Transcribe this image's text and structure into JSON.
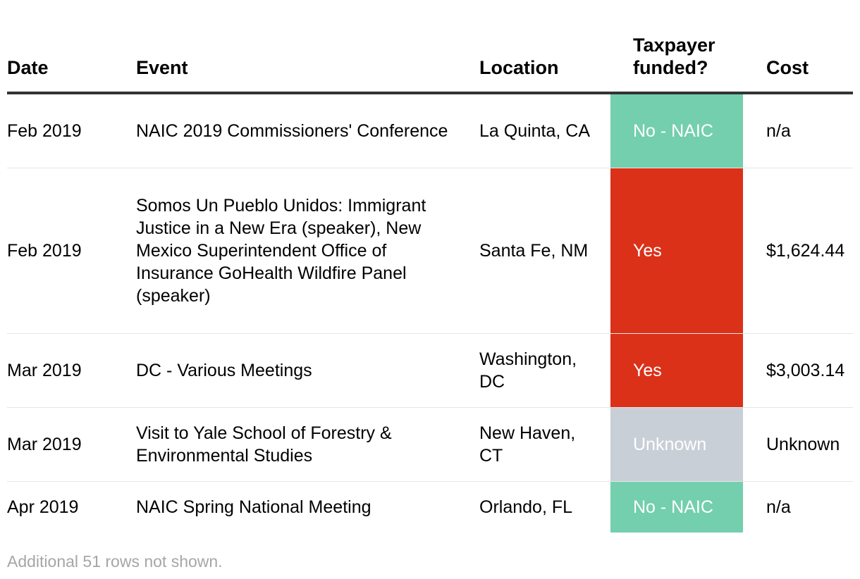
{
  "table": {
    "headers": {
      "date": "Date",
      "event": "Event",
      "location": "Location",
      "taxpayer_funded": "Taxpayer funded?",
      "cost": "Cost"
    },
    "rows": [
      {
        "date": "Feb 2019",
        "event": "NAIC 2019 Commissioners' Conference",
        "location": "La Quinta, CA",
        "taxpayer_funded": "No - NAIC",
        "cost": "n/a"
      },
      {
        "date": "Feb 2019",
        "event": "Somos Un Pueblo Unidos: Immigrant Justice in a New Era (speaker), New Mexico Superintendent Office of Insurance GoHealth Wildfire Panel (speaker)",
        "location": "Santa Fe, NM",
        "taxpayer_funded": "Yes",
        "cost": "$1,624.44"
      },
      {
        "date": "Mar 2019",
        "event": "DC - Various Meetings",
        "location": "Washington, DC",
        "taxpayer_funded": "Yes",
        "cost": "$3,003.14"
      },
      {
        "date": "Mar 2019",
        "event": "Visit to Yale School of Forestry & Environmental Studies",
        "location": "New Haven, CT",
        "taxpayer_funded": "Unknown",
        "cost": "Unknown"
      },
      {
        "date": "Apr 2019",
        "event": "NAIC Spring National Meeting",
        "location": "Orlando, FL",
        "taxpayer_funded": "No - NAIC",
        "cost": "n/a"
      }
    ]
  },
  "status_colors": {
    "no_naic": "#73cfae",
    "yes": "#db3119",
    "unknown": "#c8cfd6"
  },
  "footer": {
    "note": "Additional 51 rows not shown."
  }
}
